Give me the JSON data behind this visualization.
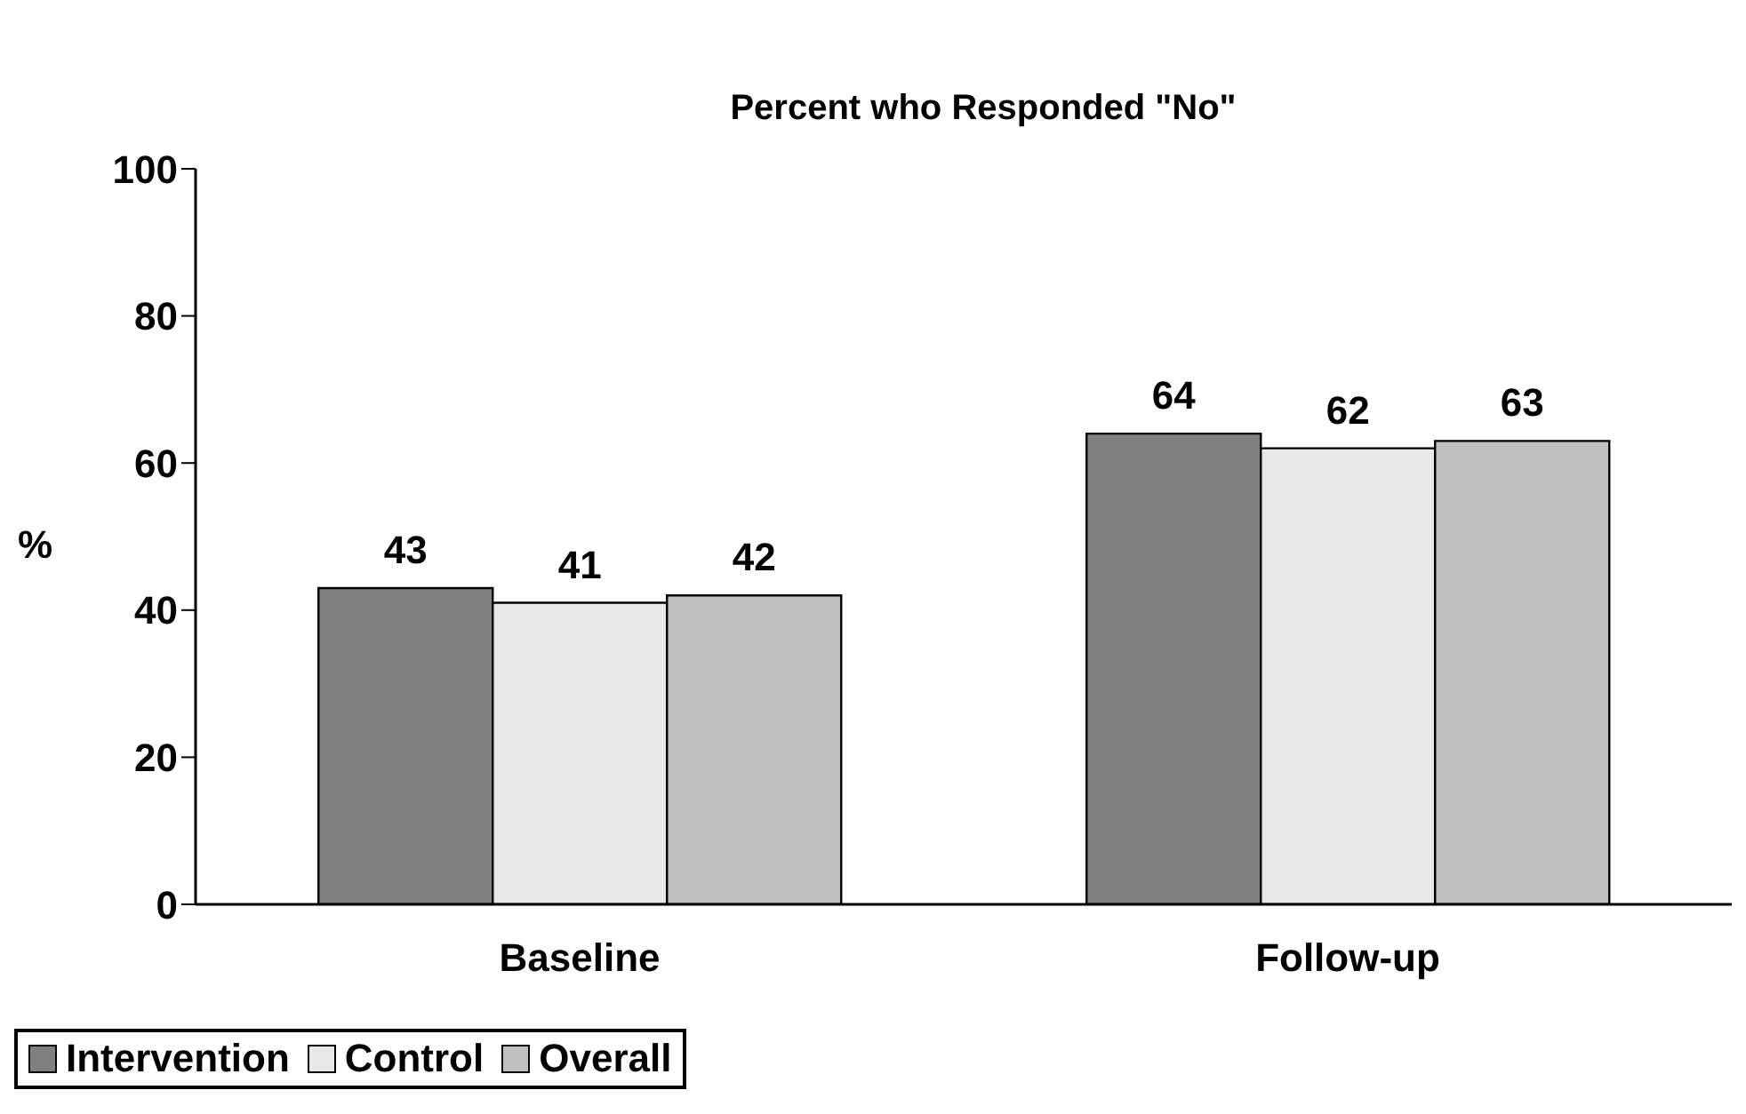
{
  "chart_data": {
    "type": "bar",
    "title": "Percent who Responded \"No\"",
    "ylabel": "%",
    "categories": [
      "Baseline",
      "Follow-up"
    ],
    "series": [
      {
        "name": "Intervention",
        "color": "#808080",
        "values": [
          43,
          64
        ]
      },
      {
        "name": "Control",
        "color": "#e8e8e8",
        "values": [
          41,
          62
        ]
      },
      {
        "name": "Overall",
        "color": "#c0c0c0",
        "values": [
          42,
          63
        ]
      }
    ],
    "ylim": [
      0,
      100
    ],
    "yticks": [
      0,
      20,
      40,
      60,
      80,
      100
    ],
    "grid": false,
    "legend": "bottom",
    "data_labels": true
  }
}
